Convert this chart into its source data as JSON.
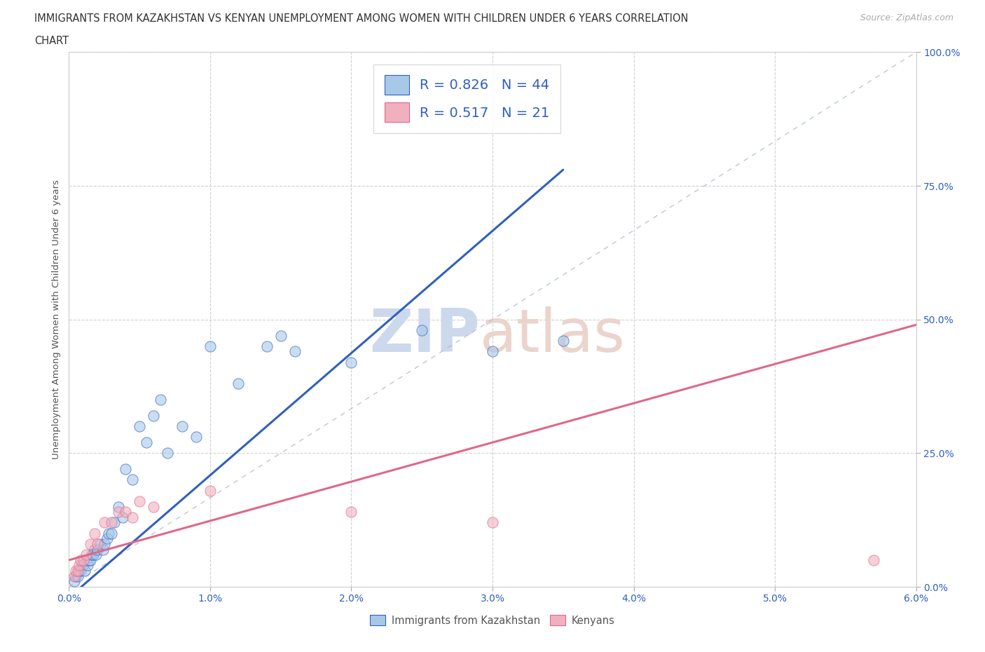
{
  "title_line1": "IMMIGRANTS FROM KAZAKHSTAN VS KENYAN UNEMPLOYMENT AMONG WOMEN WITH CHILDREN UNDER 6 YEARS CORRELATION",
  "title_line2": "CHART",
  "source": "Source: ZipAtlas.com",
  "ylabel": "Unemployment Among Women with Children Under 6 years",
  "xlim": [
    0.0,
    6.0
  ],
  "ylim": [
    0.0,
    100.0
  ],
  "xticks": [
    0.0,
    1.0,
    2.0,
    3.0,
    4.0,
    5.0,
    6.0
  ],
  "xticklabels": [
    "0.0%",
    "1.0%",
    "2.0%",
    "3.0%",
    "4.0%",
    "5.0%",
    "6.0%"
  ],
  "yticks": [
    0.0,
    25.0,
    50.0,
    75.0,
    100.0
  ],
  "yticklabels": [
    "0.0%",
    "25.0%",
    "50.0%",
    "75.0%",
    "100.0%"
  ],
  "r_kaz": 0.826,
  "n_kaz": 44,
  "r_ken": 0.517,
  "n_ken": 21,
  "color_kaz": "#a8c8e8",
  "color_ken": "#f0b0c0",
  "trend_color_kaz": "#3060c0",
  "trend_color_ken": "#e06888",
  "kaz_x": [
    0.04,
    0.05,
    0.06,
    0.07,
    0.08,
    0.09,
    0.1,
    0.11,
    0.12,
    0.13,
    0.14,
    0.15,
    0.16,
    0.17,
    0.18,
    0.19,
    0.2,
    0.22,
    0.24,
    0.25,
    0.27,
    0.28,
    0.3,
    0.32,
    0.35,
    0.38,
    0.4,
    0.45,
    0.5,
    0.55,
    0.6,
    0.65,
    0.7,
    0.8,
    0.9,
    1.0,
    1.2,
    1.4,
    1.5,
    1.6,
    2.0,
    2.5,
    3.0,
    3.5
  ],
  "kaz_y": [
    1,
    2,
    2,
    3,
    3,
    4,
    4,
    3,
    5,
    4,
    5,
    5,
    6,
    6,
    7,
    6,
    7,
    8,
    7,
    8,
    9,
    10,
    10,
    12,
    15,
    13,
    22,
    20,
    30,
    27,
    32,
    35,
    25,
    30,
    28,
    45,
    38,
    45,
    47,
    44,
    42,
    48,
    44,
    46
  ],
  "ken_x": [
    0.04,
    0.05,
    0.06,
    0.07,
    0.08,
    0.1,
    0.12,
    0.15,
    0.18,
    0.2,
    0.25,
    0.3,
    0.35,
    0.4,
    0.45,
    0.5,
    0.6,
    1.0,
    2.0,
    3.0,
    5.7
  ],
  "ken_y": [
    2,
    3,
    3,
    4,
    5,
    5,
    6,
    8,
    10,
    8,
    12,
    12,
    14,
    14,
    13,
    16,
    15,
    18,
    14,
    12,
    5
  ],
  "kaz_trend_x": [
    0.0,
    3.5
  ],
  "ken_trend_x": [
    0.0,
    6.0
  ],
  "kaz_trend_y": [
    -2,
    78
  ],
  "ken_trend_y": [
    5,
    49
  ]
}
